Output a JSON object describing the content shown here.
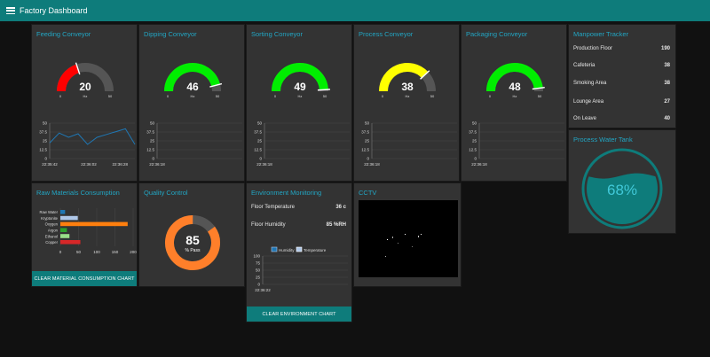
{
  "app": {
    "title": "Factory Dashboard"
  },
  "colors": {
    "accent": "#0e7c7b",
    "title": "#22a6c4",
    "gauge_track": "#555555",
    "line": "#1f77b4"
  },
  "gauges": [
    {
      "title": "Feeding Conveyor",
      "value": 20,
      "min": 0,
      "max": 50,
      "unit": "Hz",
      "min_label": "0",
      "max_label": "50",
      "color": "#ff0000",
      "chart": {
        "yticks": [
          "50",
          "37.5",
          "25",
          "12.5",
          "0"
        ],
        "xticks": [
          "22:35:42",
          "22:36:02",
          "22:36:28"
        ]
      }
    },
    {
      "title": "Dipping Conveyor",
      "value": 46,
      "min": 0,
      "max": 50,
      "unit": "Hz",
      "min_label": "0",
      "max_label": "50",
      "color": "#00ee00",
      "chart": {
        "yticks": [
          "50",
          "37.5",
          "25",
          "12.5",
          "0"
        ],
        "xticks": [
          "22:36:18"
        ]
      }
    },
    {
      "title": "Sorting Conveyor",
      "value": 49,
      "min": 0,
      "max": 50,
      "unit": "Hz",
      "min_label": "0",
      "max_label": "50",
      "color": "#00ee00",
      "chart": {
        "yticks": [
          "50",
          "37.5",
          "25",
          "12.5",
          "0"
        ],
        "xticks": [
          "22:36:18"
        ]
      }
    },
    {
      "title": "Process Conveyor",
      "value": 38,
      "min": 0,
      "max": 50,
      "unit": "Hz",
      "min_label": "0",
      "max_label": "50",
      "color": "#ffff00",
      "chart": {
        "yticks": [
          "50",
          "37.5",
          "25",
          "12.5",
          "0"
        ],
        "xticks": [
          "22:36:18"
        ]
      }
    },
    {
      "title": "Packaging Conveyor",
      "value": 48,
      "min": 0,
      "max": 50,
      "unit": "Hz",
      "min_label": "0",
      "max_label": "50",
      "color": "#00ee00",
      "chart": {
        "yticks": [
          "50",
          "37.5",
          "25",
          "12.5",
          "0"
        ],
        "xticks": [
          "22:36:18"
        ]
      }
    }
  ],
  "feeding_series": {
    "times": [
      "22:35:42",
      "22:35:47",
      "22:35:52",
      "22:35:57",
      "22:36:02",
      "22:36:07",
      "22:36:12",
      "22:36:17",
      "22:36:22",
      "22:36:28"
    ],
    "values": [
      22,
      36,
      30,
      35,
      20,
      30,
      34,
      38,
      42,
      20
    ]
  },
  "manpower": {
    "title": "Manpower Tracker",
    "rows": [
      {
        "label": "Production Floor",
        "value": "190"
      },
      {
        "label": "Cafeteria",
        "value": "38"
      },
      {
        "label": "Smoking Area",
        "value": "38"
      },
      {
        "label": "Lounge Area",
        "value": "27"
      },
      {
        "label": "On Leave",
        "value": "40"
      }
    ]
  },
  "water_tank": {
    "title": "Process Water Tank",
    "level": 68,
    "label": "68%"
  },
  "materials": {
    "title": "Raw Materials Consumption",
    "button": "CLEAR MATERIAL CONSUMPTION CHART",
    "xticks": [
      "0",
      "50",
      "100",
      "150",
      "200"
    ]
  },
  "chart_data": [
    {
      "type": "bar",
      "orientation": "horizontal",
      "title": "Raw Materials Consumption",
      "categories": [
        "Raw Water",
        "Kryptonite",
        "Oxygen",
        "Argon",
        "Ethanol",
        "Copper"
      ],
      "values": [
        13,
        48,
        185,
        18,
        25,
        55
      ],
      "colors": [
        "#1f77b4",
        "#aec7e8",
        "#ff7f0e",
        "#2ca02c",
        "#98df8a",
        "#d62728"
      ],
      "xlim": [
        0,
        200
      ]
    },
    {
      "type": "line",
      "title": "Feeding Conveyor",
      "x": [
        "22:35:42",
        "22:35:47",
        "22:35:52",
        "22:35:57",
        "22:36:02",
        "22:36:07",
        "22:36:12",
        "22:36:17",
        "22:36:22",
        "22:36:28"
      ],
      "values": [
        22,
        36,
        30,
        35,
        20,
        30,
        34,
        38,
        42,
        20
      ],
      "ylim": [
        0,
        50
      ]
    }
  ],
  "quality": {
    "title": "Quality Control",
    "value": 85,
    "label": "85",
    "sub": "% Pass",
    "color": "#ff7f2a"
  },
  "environment": {
    "title": "Environment Monitoring",
    "temp_label": "Floor Temperature",
    "temp_value": "36 c",
    "hum_label": "Floor Humidity",
    "hum_value": "85 %RH",
    "legend": [
      "Humidity",
      "Temperature"
    ],
    "yticks": [
      "100",
      "75",
      "50",
      "25",
      "0"
    ],
    "xtick": "22:36:22",
    "button": "CLEAR ENVIRONMENT CHART"
  },
  "cctv": {
    "title": "CCTV"
  }
}
